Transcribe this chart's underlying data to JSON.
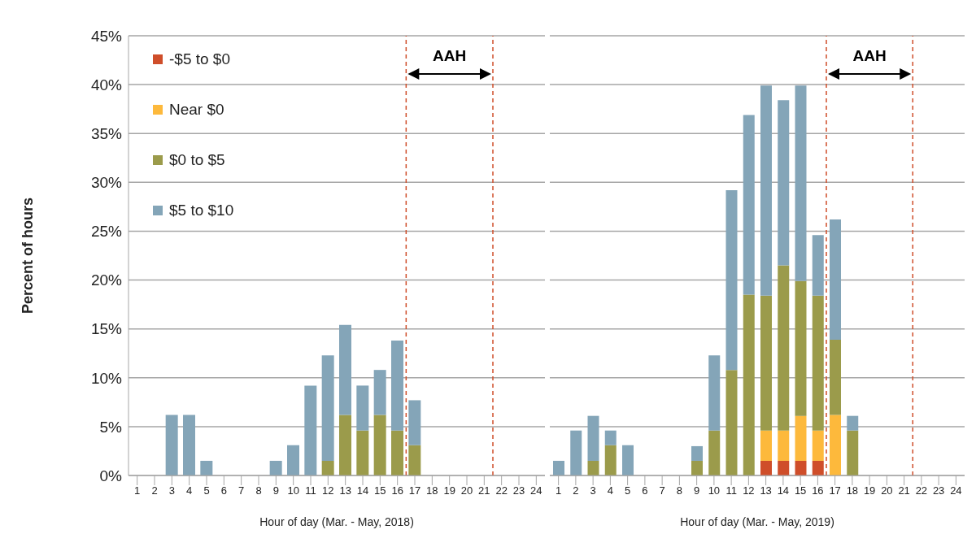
{
  "chart_data": [
    {
      "type": "bar",
      "stacked": true,
      "xlabel": "Hour of day (Mar. - May, 2018)",
      "ylabel": "Percent of hours",
      "x": [
        1,
        2,
        3,
        4,
        5,
        6,
        7,
        8,
        9,
        10,
        11,
        12,
        13,
        14,
        15,
        16,
        17,
        18,
        19,
        20,
        21,
        22,
        23,
        24
      ],
      "xlim": [
        0.5,
        24.5
      ],
      "xticks": [
        1,
        2,
        3,
        4,
        5,
        6,
        7,
        8,
        9,
        10,
        11,
        12,
        13,
        14,
        15,
        16,
        17,
        18,
        19,
        20,
        21,
        22,
        23,
        24
      ],
      "series": [
        {
          "name": "-$5 to $0",
          "color": "#cf4e2a",
          "values": [
            0,
            0,
            0,
            0,
            0,
            0,
            0,
            0,
            0,
            0,
            0,
            0,
            0,
            0,
            0,
            0,
            0,
            0,
            0,
            0,
            0,
            0,
            0,
            0
          ]
        },
        {
          "name": "Near $0",
          "color": "#fdb93c",
          "values": [
            0,
            0,
            0,
            0,
            0,
            0,
            0,
            0,
            0,
            0,
            0,
            0,
            0,
            0,
            0,
            0,
            0,
            0,
            0,
            0,
            0,
            0,
            0,
            0
          ]
        },
        {
          "name": "$0 to $5",
          "color": "#9b9b4b",
          "values": [
            0,
            0,
            0,
            0,
            0,
            0,
            0,
            0,
            0,
            0,
            0,
            1.5,
            6.2,
            4.6,
            6.2,
            4.6,
            3.1,
            0,
            0,
            0,
            0,
            0,
            0,
            0
          ]
        },
        {
          "name": "$5 to $10",
          "color": "#84a5b8",
          "values": [
            0,
            0,
            6.2,
            6.2,
            1.5,
            0,
            0,
            0,
            1.5,
            3.1,
            9.2,
            10.8,
            9.2,
            4.6,
            4.6,
            9.2,
            4.6,
            0,
            0,
            0,
            0,
            0,
            0,
            0
          ]
        }
      ],
      "ylim": [
        0,
        45
      ],
      "yticks": [
        {
          "value": 0,
          "label": "0%"
        },
        {
          "value": 5,
          "label": "5%"
        },
        {
          "value": 10,
          "label": "10%"
        },
        {
          "value": 15,
          "label": "15%"
        },
        {
          "value": 20,
          "label": "20%"
        },
        {
          "value": 25,
          "label": "25%"
        },
        {
          "value": 30,
          "label": "30%"
        },
        {
          "value": 35,
          "label": "35%"
        },
        {
          "value": 40,
          "label": "40%"
        },
        {
          "value": 45,
          "label": "45%"
        }
      ],
      "grid": "y",
      "legend": "top left",
      "ref_lines": [
        {
          "axis": "x",
          "value": 16.5,
          "color": "#cf4e2a",
          "line_style": "dashed"
        },
        {
          "axis": "x",
          "value": 21.5,
          "color": "#cf4e2a",
          "line_style": "dashed"
        }
      ],
      "annotations": [
        "AAH"
      ]
    },
    {
      "type": "bar",
      "stacked": true,
      "xlabel": "Hour of day (Mar. - May, 2019)",
      "x": [
        1,
        2,
        3,
        4,
        5,
        6,
        7,
        8,
        9,
        10,
        11,
        12,
        13,
        14,
        15,
        16,
        17,
        18,
        19,
        20,
        21,
        22,
        23,
        24
      ],
      "xlim": [
        0.5,
        24.5
      ],
      "xticks": [
        1,
        2,
        3,
        4,
        5,
        6,
        7,
        8,
        9,
        10,
        11,
        12,
        13,
        14,
        15,
        16,
        17,
        18,
        19,
        20,
        21,
        22,
        23,
        24
      ],
      "series": [
        {
          "color": "#cf4e2a",
          "values": [
            0,
            0,
            0,
            0,
            0,
            0,
            0,
            0,
            0,
            0,
            0,
            0,
            1.5,
            1.5,
            1.5,
            1.5,
            0,
            0,
            0,
            0,
            0,
            0,
            0,
            0
          ]
        },
        {
          "color": "#fdb93c",
          "values": [
            0,
            0,
            0,
            0,
            0,
            0,
            0,
            0,
            0,
            0,
            0,
            0,
            3.1,
            3.1,
            4.6,
            3.1,
            6.2,
            0,
            0,
            0,
            0,
            0,
            0,
            0
          ]
        },
        {
          "color": "#9b9b4b",
          "values": [
            0,
            0,
            1.5,
            3.1,
            0,
            0,
            0,
            0,
            1.5,
            4.6,
            10.8,
            18.5,
            13.8,
            16.9,
            13.8,
            13.8,
            7.7,
            4.6,
            0,
            0,
            0,
            0,
            0,
            0
          ]
        },
        {
          "color": "#84a5b8",
          "values": [
            1.5,
            4.6,
            4.6,
            1.5,
            3.1,
            0,
            0,
            0,
            1.5,
            7.7,
            18.4,
            18.4,
            21.5,
            16.9,
            20,
            6.2,
            12.3,
            1.5,
            0,
            0,
            0,
            0,
            0,
            0
          ]
        }
      ],
      "ylim": [
        0,
        45
      ],
      "yticks": [
        0,
        5,
        10,
        15,
        20,
        25,
        30,
        35,
        40,
        45
      ],
      "grid": "y",
      "tick_labels": "x",
      "ref_lines": [
        {
          "axis": "x",
          "value": 16.5,
          "color": "#cf4e2a",
          "line_style": "dashed"
        },
        {
          "axis": "x",
          "value": 21.5,
          "color": "#cf4e2a",
          "line_style": "dashed"
        }
      ],
      "annotations": [
        "AAH"
      ]
    }
  ]
}
